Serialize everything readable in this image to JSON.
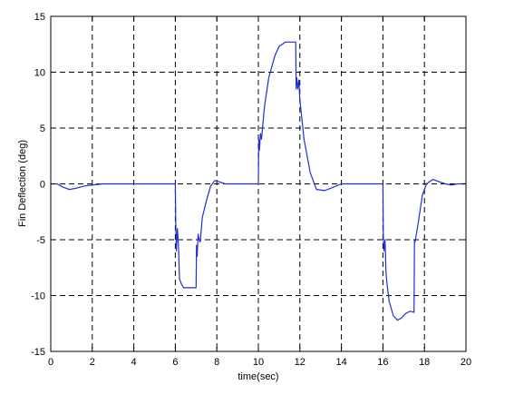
{
  "chart_data": {
    "type": "line",
    "title": "",
    "xlabel": "time(sec)",
    "ylabel": "Fin Deflection (deg)",
    "xlim": [
      0,
      20
    ],
    "ylim": [
      -15,
      15
    ],
    "xticks": [
      0,
      2,
      4,
      6,
      8,
      10,
      12,
      14,
      16,
      18,
      20
    ],
    "yticks": [
      -15,
      -10,
      -5,
      0,
      5,
      10,
      15
    ],
    "grid": true,
    "grid_style": "dashed",
    "legend": "none",
    "colors": {
      "line": "#1f2fd0",
      "grid": "#000000",
      "axes": "#000000"
    },
    "series": [
      {
        "x": [
          0,
          0.3,
          0.6,
          0.9,
          1.2,
          1.6,
          2.0,
          2.5,
          3.0,
          4.0,
          5.0,
          5.9,
          6.0,
          6.02,
          6.05,
          6.1,
          6.15,
          6.2,
          6.3,
          6.4,
          6.6,
          7.0,
          7.02,
          7.05,
          7.1,
          7.15,
          7.2,
          7.3,
          7.5,
          7.7,
          7.9,
          8.1,
          8.4,
          8.8,
          9.2,
          9.6,
          10.0,
          10.02,
          10.05,
          10.1,
          10.15,
          10.3,
          10.5,
          10.8,
          11.0,
          11.3,
          11.7,
          11.8,
          11.82,
          11.85,
          11.9,
          11.95,
          12.0,
          12.2,
          12.5,
          12.8,
          13.2,
          13.6,
          14.0,
          15.0,
          16.0,
          16.02,
          16.05,
          16.1,
          16.15,
          16.2,
          16.3,
          16.5,
          16.7,
          16.9,
          17.1,
          17.3,
          17.5,
          17.52,
          17.55,
          17.7,
          17.9,
          18.1,
          18.4,
          18.7,
          19.0,
          19.3,
          19.6,
          20.0
        ],
        "y": [
          0,
          0,
          -0.3,
          -0.5,
          -0.4,
          -0.2,
          -0.1,
          0,
          0,
          0,
          0,
          0,
          0,
          -3.5,
          -6.0,
          -4.0,
          -5.5,
          -8.5,
          -9.0,
          -9.3,
          -9.3,
          -9.3,
          -5.5,
          -6.5,
          -4.5,
          -5.0,
          -5.2,
          -3.0,
          -1.5,
          -0.2,
          0.3,
          0.2,
          0,
          0,
          0,
          0,
          0,
          4.0,
          3.0,
          4.5,
          4.0,
          7.0,
          9.5,
          11.5,
          12.3,
          12.7,
          12.7,
          12.7,
          8.5,
          9.5,
          8.5,
          9.3,
          7.5,
          4.0,
          1.0,
          -0.5,
          -0.6,
          -0.3,
          0,
          0,
          0,
          -4.8,
          -6.0,
          -5.0,
          -8.0,
          -9.0,
          -10.5,
          -11.8,
          -12.2,
          -12.0,
          -11.6,
          -11.4,
          -11.5,
          -5.0,
          -5.2,
          -3.5,
          -1.0,
          0,
          0.4,
          0.2,
          0,
          -0.1,
          0,
          0
        ]
      }
    ]
  }
}
